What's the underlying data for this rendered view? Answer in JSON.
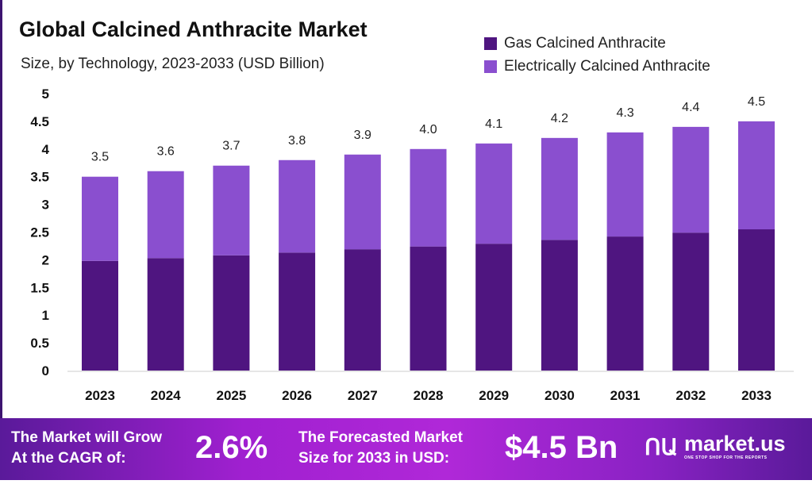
{
  "chart_data": {
    "type": "bar",
    "stacked": true,
    "title": "Global Calcined Anthracite Market",
    "subtitle": "Size, by Technology, 2023-2033 (USD Billion)",
    "categories": [
      "2023",
      "2024",
      "2025",
      "2026",
      "2027",
      "2028",
      "2029",
      "2030",
      "2031",
      "2032",
      "2033"
    ],
    "series": [
      {
        "name": "Gas Calcined Anthracite",
        "color": "#4f1580",
        "values": [
          1.98,
          2.03,
          2.08,
          2.13,
          2.19,
          2.24,
          2.29,
          2.36,
          2.42,
          2.49,
          2.55
        ]
      },
      {
        "name": "Electrically Calcined Anthracite",
        "color": "#8a4fcf",
        "values": [
          1.52,
          1.57,
          1.62,
          1.67,
          1.71,
          1.76,
          1.81,
          1.84,
          1.88,
          1.91,
          1.95
        ]
      }
    ],
    "totals": [
      "3.5",
      "3.6",
      "3.7",
      "3.8",
      "3.9",
      "4.0",
      "4.1",
      "4.2",
      "4.3",
      "4.4",
      "4.5"
    ],
    "yticks": [
      "0",
      "0.5",
      "1",
      "1.5",
      "2",
      "2.5",
      "3",
      "3.5",
      "4",
      "4.5",
      "5"
    ],
    "ylim": [
      0,
      5
    ],
    "grid": false,
    "legend_position": "top-right"
  },
  "banner": {
    "cagr_label_line1": "The Market will Grow",
    "cagr_label_line2": "At the CAGR of:",
    "cagr_value": "2.6%",
    "forecast_label_line1": "The Forecasted Market",
    "forecast_label_line2": "Size for 2033 in USD:",
    "forecast_value": "$4.5 Bn",
    "logo_name": "market.us",
    "logo_tagline": "ONE STOP SHOP FOR THE REPORTS"
  }
}
